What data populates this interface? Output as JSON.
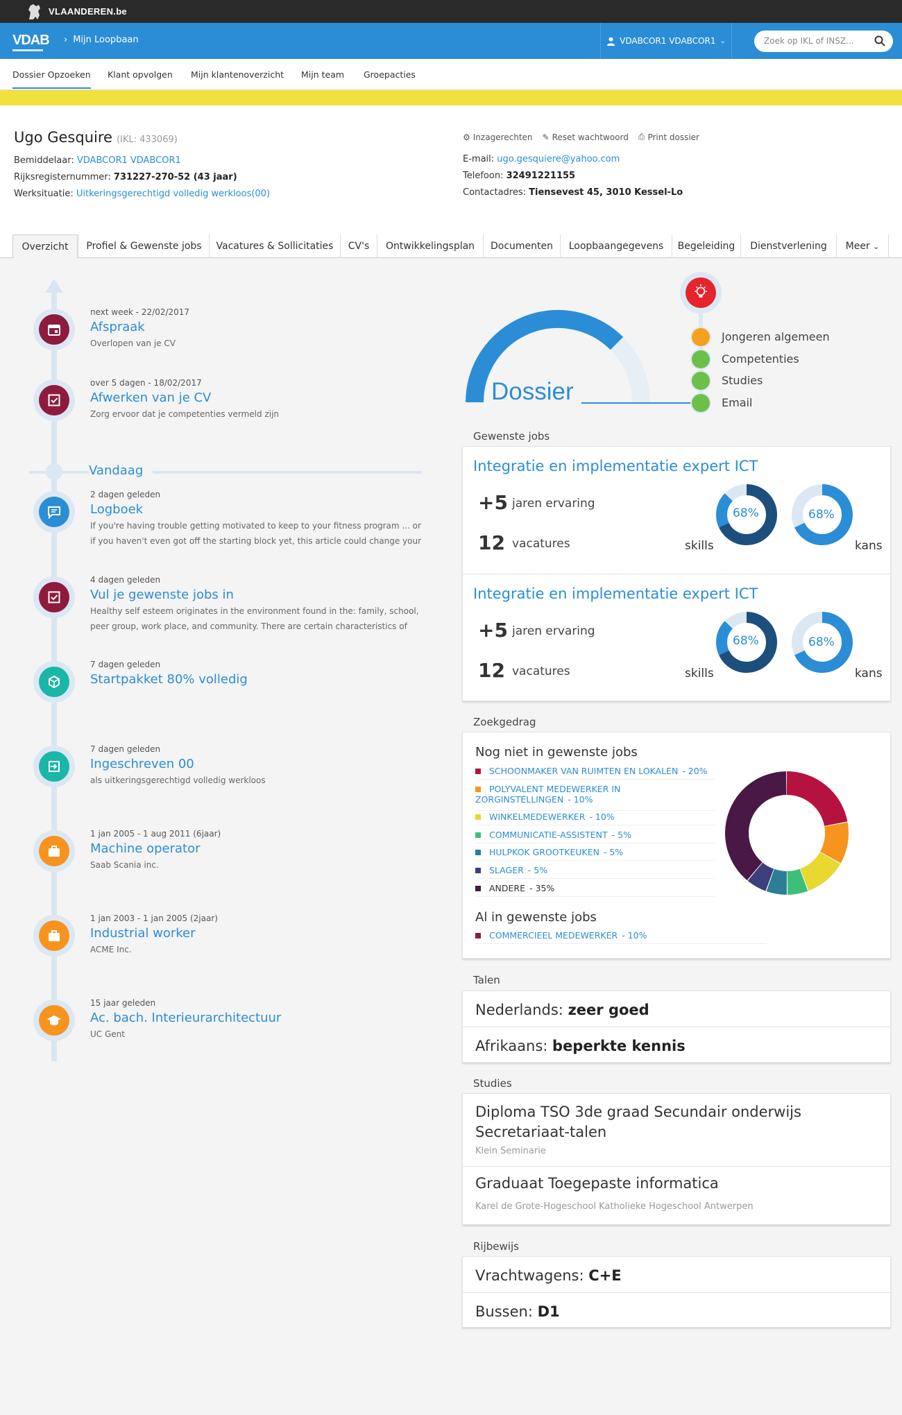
{
  "vlaanderen": {
    "brand": "VLAANDEREN.be"
  },
  "topbar": {
    "logo": "VDAB",
    "breadcrumb": "Mijn Loopbaan",
    "user": "VDABCOR1 VDABCOR1",
    "search_placeholder": "Zoek op IKL of INSZ..."
  },
  "nav": {
    "items": [
      "Dossier Opzoeken",
      "Klant opvolgen",
      "Mijn klantenoverzicht",
      "Mijn team",
      "Groepacties"
    ]
  },
  "person": {
    "name": "Ugo Gesquire",
    "ikl": "(IKL: 433069)",
    "bemiddelaar_label": "Bemiddelaar:",
    "bemiddelaar": "VDABCOR1 VDABCOR1",
    "rijks_label": "Rijksregisternummer:",
    "rijks": "731227-270-52 (43 jaar)",
    "werk_label": "Werksituatie:",
    "werk": "Uitkeringsgerechtigd volledig werkloos(00)",
    "email_label": "E-mail:",
    "email": "ugo.gesquiere@yahoo.com",
    "tel_label": "Telefoon:",
    "tel": "32491221155",
    "adres_label": "Contactadres:",
    "adres": "Tiensevest 45, 3010 Kessel-Lo"
  },
  "actions": [
    "Inzagerechten",
    "Reset wachtwoord",
    "Print dossier"
  ],
  "tabs": [
    "Overzicht",
    "Profiel & Gewenste jobs",
    "Vacatures & Sollicitaties",
    "CV's",
    "Ontwikkelingsplan",
    "Documenten",
    "Loopbaangegevens",
    "Begeleiding",
    "Dienstverlening",
    "Meer"
  ],
  "timeline": {
    "today": "Vandaag",
    "events": [
      {
        "when": "next week - 22/02/2017",
        "title": "Afspraak",
        "desc": "Overlopen van je CV",
        "icon": "calendar-icon",
        "color": "#8e1b3e"
      },
      {
        "when": "over 5 dagen - 18/02/2017",
        "title": "Afwerken van je CV",
        "desc": "Zorg ervoor dat je competenties vermeld zijn",
        "icon": "checkbox-icon",
        "color": "#8e1b3e"
      },
      {
        "when": "2 dagen geleden",
        "title": "Logboek",
        "desc": "If you're having trouble getting motivated to keep to your fitness program ... or if you haven't even got off the starting block yet, this article could change your",
        "icon": "chat-icon",
        "color": "#2b8dd6"
      },
      {
        "when": "4 dagen geleden",
        "title": "Vul je gewenste jobs in",
        "desc": "Healthy self esteem originates in the environment found in the: family, school, peer group, work place, and community. There are certain characteristics of",
        "icon": "checkbox-icon",
        "color": "#8e1b3e"
      },
      {
        "when": "7 dagen geleden",
        "title": "Startpakket 80% volledig",
        "desc": "",
        "icon": "package-icon",
        "color": "#1ab6a8"
      },
      {
        "when": "7 dagen geleden",
        "title": "Ingeschreven 00",
        "desc": "als uitkeringsgerechtigd volledig werkloos",
        "icon": "enter-icon",
        "color": "#1ab6a8"
      },
      {
        "when": "1 jan 2005 - 1 aug 2011 (6jaar)",
        "title": "Machine operator",
        "desc": "Saab Scania inc.",
        "icon": "briefcase-icon",
        "color": "#f7941d"
      },
      {
        "when": "1 jan 2003 - 1 jan 2005 (2jaar)",
        "title": "Industrial worker",
        "desc": "ACME Inc.",
        "icon": "briefcase-icon",
        "color": "#f7941d"
      },
      {
        "when": "15 jaar geleden",
        "title": "Ac. bach. Interieurarchitectuur",
        "desc": "UC Gent",
        "icon": "graduation-icon",
        "color": "#f7941d"
      }
    ]
  },
  "dossier": {
    "label": "Dossier",
    "level": 0.75,
    "items": [
      {
        "label": "Jongeren algemeen",
        "color": "#f7a01d"
      },
      {
        "label": "Competenties",
        "color": "#6cc04a"
      },
      {
        "label": "Studies",
        "color": "#6cc04a"
      },
      {
        "label": "Email",
        "color": "#6cc04a"
      }
    ]
  },
  "gewenste": {
    "title": "Gewenste jobs",
    "jobs": [
      {
        "title": "Integratie en implementatie expert ICT",
        "years": "+5",
        "years_label": "jaren ervaring",
        "vac": "12",
        "vac_label": "vacatures",
        "skills": "68%",
        "skills_label": "skills",
        "kans": "68%",
        "kans_label": "kans",
        "skills_value": 68,
        "kans_value": 68
      },
      {
        "title": "Integratie en implementatie expert ICT",
        "years": "+5",
        "years_label": "jaren ervaring",
        "vac": "12",
        "vac_label": "vacatures",
        "skills": "68%",
        "skills_label": "skills",
        "kans": "68%",
        "kans_label": "kans",
        "skills_value": 68,
        "kans_value": 68
      }
    ]
  },
  "zoekgedrag": {
    "title": "Zoekgedrag",
    "group1": "Nog niet in gewenste jobs",
    "items": [
      {
        "label": "SCHOONMAKER VAN RUIMTEN EN LOKALEN",
        "pct": "- 20%",
        "color": "#b5123f"
      },
      {
        "label": "POLYVALENT MEDEWERKER IN",
        "label2": "ZORGINSTELLINGEN",
        "pct": "- 10%",
        "color": "#f7941d"
      },
      {
        "label": "WINKELMEDEWERKER",
        "pct": "- 10%",
        "color": "#e8d82f"
      },
      {
        "label": "COMMUNICATIE-ASSISTENT",
        "pct": "- 5%",
        "color": "#3dbf7a"
      },
      {
        "label": "HULPKOK GROOTKEUKEN",
        "pct": "- 5%",
        "color": "#2b7e96"
      },
      {
        "label": "SLAGER",
        "pct": "- 5%",
        "color": "#3d3f7a"
      },
      {
        "label": "ANDERE",
        "pct": "- 35%",
        "color": "#4a1845"
      }
    ],
    "group2": "Al in gewenste jobs",
    "items2": [
      {
        "label": "COMMERCIEEL MEDEWERKER",
        "pct": "- 10%",
        "color": "#8e1b3e"
      }
    ],
    "pie_values": [
      20,
      10,
      10,
      5,
      5,
      5,
      35
    ]
  },
  "talen": {
    "title": "Talen",
    "items": [
      {
        "lang": "Nederlands:",
        "level": "zeer goed"
      },
      {
        "lang": "Afrikaans:",
        "level": "beperkte kennis"
      }
    ]
  },
  "studies": {
    "title": "Studies",
    "items": [
      {
        "line1": "Diploma TSO 3de graad Secundair onderwijs",
        "line2": "Secretariaat-talen",
        "school": "Klein Seminarie"
      },
      {
        "line1": "Graduaat Toegepaste informatica",
        "line2": "",
        "school": "Karel de Grote-Hogeschool Katholieke Hogeschool Antwerpen"
      }
    ]
  },
  "rijbewijs": {
    "title": "Rijbewijs",
    "items": [
      {
        "type": "Vrachtwagens:",
        "cat": "C+E"
      },
      {
        "type": "Bussen:",
        "cat": "D1"
      }
    ]
  }
}
